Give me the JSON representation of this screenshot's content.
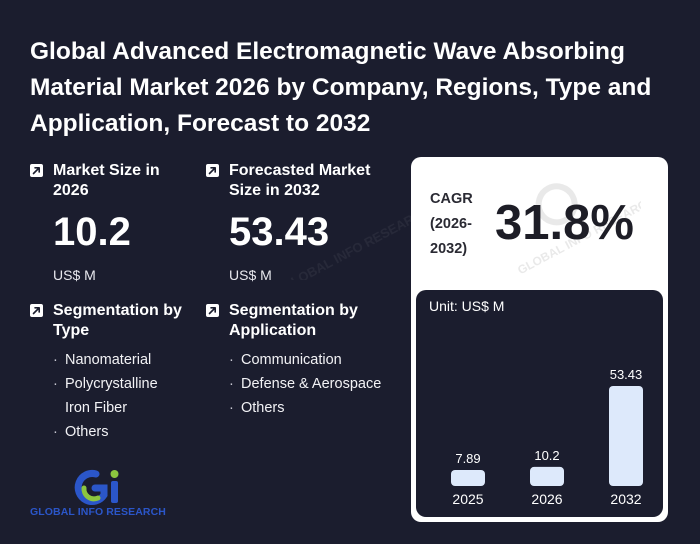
{
  "title": "Global Advanced Electromagnetic Wave Absorbing Material Market 2026 by Company, Regions, Type and Application, Forecast to 2032",
  "market_size": {
    "label": "Market Size in 2026",
    "value": "10.2",
    "unit": "US$ M"
  },
  "forecast_size": {
    "label": "Forecasted Market Size in 2032",
    "value": "53.43",
    "unit": "US$ M"
  },
  "seg_type": {
    "label": "Segmentation by Type",
    "items": [
      "Nanomaterial",
      "Polycrystalline Iron Fiber",
      "Others"
    ]
  },
  "seg_app": {
    "label": "Segmentation by Application",
    "items": [
      "Communication",
      "Defense & Aerospace",
      "Others"
    ]
  },
  "cagr": {
    "label": "CAGR (2026-2032)",
    "label_line1": "CAGR",
    "label_line2": "(2026-",
    "label_line3": "2032)",
    "value": "31.8%"
  },
  "logo": {
    "text": "GLOBAL INFO RESEARCH",
    "watermark": "GLOBAL INFO RESEARCH"
  },
  "colors": {
    "background": "#1b1d2e",
    "bar": "#dde9fb",
    "card": "#ffffff",
    "logo_blue": "#2b56c9",
    "logo_green": "#8cc63f"
  },
  "chart_data": {
    "type": "bar",
    "unit_label": "Unit: US$ M",
    "categories": [
      "2025",
      "2026",
      "2032"
    ],
    "values": [
      7.89,
      10.2,
      53.43
    ],
    "value_labels": [
      "7.89",
      "10.2",
      "53.43"
    ],
    "title": "",
    "xlabel": "",
    "ylabel": "",
    "grid": false
  }
}
